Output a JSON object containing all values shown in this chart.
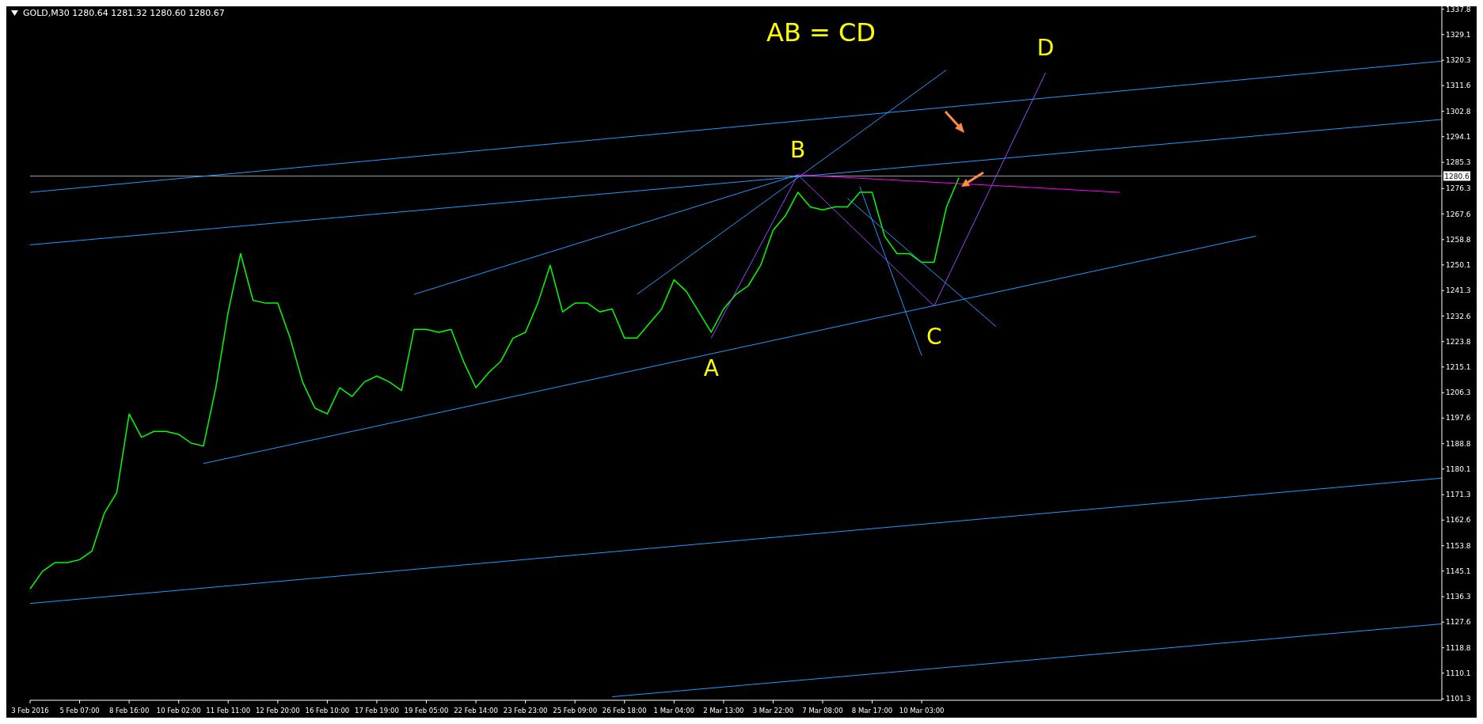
{
  "chart_data": {
    "type": "line",
    "title": "AB = CD",
    "subtitle": "GOLD,M30  1280.64 1281.32 1280.60 1280.67",
    "categories": [
      "3 Feb 2016",
      null,
      null,
      null,
      "5 Feb 07:00",
      null,
      null,
      null,
      "8 Feb 16:00",
      null,
      null,
      null,
      "10 Feb 02:00",
      null,
      null,
      null,
      "11 Feb 11:00",
      null,
      null,
      null,
      "12 Feb 20:00",
      null,
      null,
      null,
      "16 Feb 10:00",
      null,
      null,
      null,
      "17 Feb 19:00",
      null,
      null,
      null,
      "19 Feb 05:00",
      null,
      null,
      null,
      "22 Feb 14:00",
      null,
      null,
      null,
      "23 Feb 23:00",
      null,
      null,
      null,
      "25 Feb 09:00",
      null,
      null,
      null,
      "26 Feb 18:00",
      null,
      null,
      null,
      "1 Mar 04:00",
      null,
      null,
      null,
      "2 Mar 13:00",
      null,
      null,
      null,
      "3 Mar 22:00",
      null,
      null,
      null,
      "7 Mar 08:00",
      null,
      null,
      null,
      "8 Mar 17:00",
      null,
      null,
      null,
      "10 Mar 03:00",
      null,
      null,
      null,
      null,
      null,
      null,
      null,
      null,
      null,
      null,
      null,
      null,
      null,
      null,
      null,
      null,
      null,
      null,
      null,
      null,
      null,
      null,
      null,
      null,
      null,
      null,
      null,
      null,
      null,
      null,
      null,
      null,
      null,
      null,
      null,
      null,
      null,
      null,
      null,
      null,
      null,
      null
    ],
    "series": [
      {
        "color": "#00ff00",
        "values": [
          1139,
          1145,
          1148,
          1148,
          1149,
          1152,
          1165,
          1172,
          1199,
          1191,
          1193,
          1193,
          1192,
          1189,
          1188,
          1208,
          1234,
          1254,
          1238,
          1237,
          1237,
          1225,
          1210,
          1201,
          1199,
          1208,
          1205,
          1210,
          1212,
          1210,
          1207,
          1228,
          1228,
          1227,
          1228,
          1217,
          1208,
          1213,
          1217,
          1225,
          1227,
          1237,
          1250,
          1234,
          1237,
          1237,
          1234,
          1235,
          1225,
          1225,
          1230,
          1235,
          1245,
          1241,
          1234,
          1227,
          1235,
          1240,
          1243,
          1250,
          1262,
          1267,
          1275,
          1270,
          1269,
          1270,
          1270,
          1275,
          1275,
          1260,
          1254,
          1254,
          1251,
          1251,
          1270,
          1280,
          null,
          null,
          null,
          null,
          null,
          null,
          null,
          null,
          null,
          null,
          null,
          null,
          null,
          null,
          null,
          null,
          null,
          null,
          null,
          null,
          null,
          null,
          null,
          null,
          null,
          null,
          null,
          null,
          null,
          null,
          null,
          null,
          null,
          null,
          null,
          null,
          null,
          null,
          null
        ]
      },
      {
        "color": "#1e9bff",
        "values": [
          1275,
          null,
          null,
          null,
          null,
          null,
          null,
          null,
          null,
          null,
          null,
          null,
          null,
          null,
          null,
          null,
          null,
          null,
          null,
          null,
          null,
          null,
          null,
          null,
          null,
          null,
          null,
          null,
          null,
          null,
          null,
          null,
          null,
          null,
          null,
          null,
          null,
          null,
          null,
          null,
          null,
          null,
          null,
          null,
          null,
          null,
          null,
          null,
          null,
          null,
          null,
          null,
          null,
          null,
          null,
          null,
          null,
          null,
          null,
          null,
          null,
          null,
          null,
          null,
          null,
          null,
          null,
          null,
          null,
          null,
          null,
          null,
          null,
          null,
          null,
          null,
          null,
          null,
          null,
          null,
          null,
          null,
          null,
          null,
          null,
          null,
          null,
          null,
          null,
          null,
          null,
          null,
          null,
          null,
          null,
          null,
          null,
          null,
          null,
          null,
          null,
          null,
          null,
          null,
          null,
          null,
          null,
          null,
          null,
          null,
          null,
          null,
          null,
          null,
          1320
        ]
      },
      {
        "color": "#1e9bff",
        "values": [
          1257,
          null,
          null,
          null,
          null,
          null,
          null,
          null,
          null,
          null,
          null,
          null,
          null,
          null,
          null,
          null,
          null,
          null,
          null,
          null,
          null,
          null,
          null,
          null,
          null,
          null,
          null,
          null,
          null,
          null,
          null,
          null,
          null,
          null,
          null,
          null,
          null,
          null,
          null,
          null,
          null,
          null,
          null,
          null,
          null,
          null,
          null,
          null,
          null,
          null,
          null,
          null,
          null,
          null,
          null,
          null,
          null,
          null,
          null,
          null,
          null,
          null,
          null,
          null,
          null,
          null,
          null,
          null,
          null,
          null,
          null,
          null,
          null,
          null,
          null,
          null,
          null,
          null,
          null,
          null,
          null,
          null,
          null,
          null,
          null,
          null,
          null,
          null,
          null,
          null,
          null,
          null,
          null,
          null,
          null,
          null,
          null,
          null,
          null,
          null,
          null,
          null,
          null,
          null,
          null,
          null,
          null,
          null,
          null,
          null,
          null,
          null,
          null,
          null,
          1300
        ]
      },
      {
        "color": "#1e9bff",
        "values": [
          null,
          null,
          null,
          null,
          null,
          null,
          null,
          null,
          null,
          null,
          null,
          null,
          null,
          null,
          1182,
          null,
          null,
          null,
          null,
          null,
          null,
          null,
          null,
          null,
          null,
          null,
          null,
          null,
          null,
          null,
          null,
          null,
          null,
          null,
          null,
          null,
          null,
          null,
          null,
          null,
          null,
          null,
          null,
          null,
          null,
          null,
          null,
          null,
          null,
          null,
          null,
          null,
          null,
          null,
          null,
          null,
          null,
          null,
          null,
          null,
          null,
          null,
          null,
          null,
          null,
          null,
          null,
          null,
          null,
          null,
          null,
          null,
          null,
          null,
          null,
          null,
          null,
          null,
          null,
          null,
          null,
          null,
          null,
          null,
          null,
          null,
          null,
          null,
          null,
          null,
          null,
          null,
          null,
          null,
          null,
          null,
          null,
          null,
          null,
          1260,
          null,
          null,
          null,
          null,
          null,
          null,
          null,
          null,
          null,
          null,
          null,
          null,
          null,
          null,
          null
        ]
      },
      {
        "color": "#1e9bff",
        "values": [
          1134,
          null,
          null,
          null,
          null,
          null,
          null,
          null,
          null,
          null,
          null,
          null,
          null,
          null,
          null,
          null,
          null,
          null,
          null,
          null,
          null,
          null,
          null,
          null,
          null,
          null,
          null,
          null,
          null,
          null,
          null,
          null,
          null,
          null,
          null,
          null,
          null,
          null,
          null,
          null,
          null,
          null,
          null,
          null,
          null,
          null,
          null,
          null,
          null,
          null,
          null,
          null,
          null,
          null,
          null,
          null,
          null,
          null,
          null,
          null,
          null,
          null,
          null,
          null,
          null,
          null,
          null,
          null,
          null,
          null,
          null,
          null,
          null,
          null,
          null,
          null,
          null,
          null,
          null,
          null,
          null,
          null,
          null,
          null,
          null,
          null,
          null,
          null,
          null,
          null,
          null,
          null,
          null,
          null,
          null,
          null,
          null,
          null,
          null,
          null,
          null,
          null,
          null,
          null,
          null,
          null,
          null,
          null,
          null,
          null,
          null,
          null,
          null,
          null,
          1177
        ]
      },
      {
        "color": "#1e9bff",
        "values": [
          null,
          null,
          null,
          null,
          null,
          null,
          null,
          null,
          null,
          null,
          null,
          null,
          null,
          null,
          null,
          null,
          null,
          null,
          null,
          null,
          null,
          null,
          null,
          null,
          null,
          null,
          null,
          null,
          null,
          null,
          null,
          null,
          null,
          null,
          null,
          null,
          null,
          null,
          null,
          null,
          null,
          null,
          null,
          null,
          null,
          null,
          null,
          1102,
          null,
          null,
          null,
          null,
          null,
          null,
          null,
          null,
          null,
          null,
          null,
          null,
          null,
          null,
          null,
          null,
          null,
          null,
          null,
          null,
          null,
          null,
          null,
          null,
          null,
          null,
          null,
          null,
          null,
          null,
          null,
          null,
          null,
          null,
          null,
          null,
          null,
          null,
          null,
          null,
          null,
          null,
          null,
          null,
          null,
          null,
          null,
          null,
          null,
          null,
          null,
          null,
          null,
          null,
          null,
          null,
          null,
          null,
          null,
          null,
          null,
          null,
          null,
          null,
          null,
          null,
          1127
        ]
      },
      {
        "color": "#1e9bff",
        "values": [
          null,
          null,
          null,
          null,
          null,
          null,
          null,
          null,
          null,
          null,
          null,
          null,
          null,
          null,
          null,
          null,
          null,
          null,
          null,
          null,
          null,
          null,
          null,
          null,
          null,
          null,
          null,
          null,
          null,
          null,
          null,
          1240,
          null,
          null,
          null,
          null,
          null,
          null,
          null,
          null,
          null,
          null,
          null,
          null,
          null,
          null,
          null,
          null,
          null,
          null,
          null,
          null,
          null,
          null,
          null,
          null,
          null,
          null,
          null,
          null,
          null,
          null,
          1281,
          null,
          null,
          null,
          null,
          null,
          null,
          null,
          null,
          null,
          null,
          null,
          null,
          null,
          null,
          null,
          null,
          null,
          null,
          null,
          null,
          null,
          null,
          null,
          null,
          null,
          null,
          null,
          null,
          null,
          null,
          null,
          null,
          null,
          null,
          null,
          null,
          null,
          null,
          null,
          null,
          null,
          null,
          null,
          null,
          null,
          null,
          null,
          null,
          null,
          null,
          null,
          null
        ]
      },
      {
        "color": "#1e9bff",
        "values": [
          null,
          null,
          null,
          null,
          null,
          null,
          null,
          null,
          null,
          null,
          null,
          null,
          null,
          null,
          null,
          null,
          null,
          null,
          null,
          null,
          null,
          null,
          null,
          null,
          null,
          null,
          null,
          null,
          null,
          null,
          null,
          null,
          null,
          null,
          null,
          null,
          null,
          null,
          null,
          null,
          null,
          null,
          null,
          null,
          null,
          null,
          null,
          null,
          null,
          1240,
          null,
          null,
          null,
          null,
          null,
          null,
          null,
          null,
          null,
          null,
          null,
          null,
          null,
          null,
          null,
          null,
          null,
          null,
          null,
          null,
          null,
          null,
          null,
          null,
          1317,
          null,
          null,
          null,
          null,
          null,
          null,
          null,
          null,
          null,
          null,
          null,
          null,
          null,
          null,
          null,
          null,
          null,
          null,
          null,
          null,
          null,
          null,
          null,
          null,
          null,
          null,
          null,
          null,
          null,
          null,
          null,
          null,
          null,
          null,
          null,
          null,
          null,
          null,
          null,
          null
        ]
      },
      {
        "color": "#ff00ff",
        "values": [
          null,
          null,
          null,
          null,
          null,
          null,
          null,
          null,
          null,
          null,
          null,
          null,
          null,
          null,
          null,
          null,
          null,
          null,
          null,
          null,
          null,
          null,
          null,
          null,
          null,
          null,
          null,
          null,
          null,
          null,
          null,
          null,
          null,
          null,
          null,
          null,
          null,
          null,
          null,
          null,
          null,
          null,
          null,
          null,
          null,
          null,
          null,
          null,
          null,
          null,
          null,
          null,
          null,
          null,
          null,
          null,
          null,
          null,
          null,
          null,
          null,
          null,
          1281,
          null,
          null,
          null,
          null,
          null,
          null,
          null,
          null,
          null,
          null,
          null,
          null,
          null,
          null,
          null,
          null,
          null,
          null,
          null,
          null,
          null,
          null,
          null,
          null,
          null,
          1275,
          null,
          null,
          null,
          null,
          null,
          null,
          null,
          null,
          null,
          null,
          null,
          null,
          null,
          null,
          null,
          null,
          null,
          null,
          null,
          null,
          null,
          null,
          null,
          null,
          null,
          null
        ]
      },
      {
        "color": "#1e9bff",
        "values": [
          null,
          null,
          null,
          null,
          null,
          null,
          null,
          null,
          null,
          null,
          null,
          null,
          null,
          null,
          null,
          null,
          null,
          null,
          null,
          null,
          null,
          null,
          null,
          null,
          null,
          null,
          null,
          null,
          null,
          null,
          null,
          null,
          null,
          null,
          null,
          null,
          null,
          null,
          null,
          null,
          null,
          null,
          null,
          null,
          null,
          null,
          null,
          null,
          null,
          null,
          null,
          null,
          null,
          null,
          null,
          null,
          null,
          null,
          null,
          null,
          null,
          null,
          null,
          null,
          null,
          null,
          null,
          1277,
          null,
          null,
          null,
          null,
          1219,
          null,
          null,
          null,
          null,
          null,
          null,
          null,
          null,
          null,
          null,
          null,
          null,
          null,
          null,
          null,
          null,
          null,
          null,
          null,
          null,
          null,
          null,
          null,
          null,
          null,
          null,
          null,
          null,
          null,
          null,
          null,
          null,
          null,
          null,
          null,
          null,
          null,
          null,
          null,
          null,
          null,
          null
        ]
      },
      {
        "color": "#1e9bff",
        "values": [
          null,
          null,
          null,
          null,
          null,
          null,
          null,
          null,
          null,
          null,
          null,
          null,
          null,
          null,
          null,
          null,
          null,
          null,
          null,
          null,
          null,
          null,
          null,
          null,
          null,
          null,
          null,
          null,
          null,
          null,
          null,
          null,
          null,
          null,
          null,
          null,
          null,
          null,
          null,
          null,
          null,
          null,
          null,
          null,
          null,
          null,
          null,
          null,
          null,
          null,
          null,
          null,
          null,
          null,
          null,
          null,
          null,
          null,
          null,
          null,
          null,
          null,
          null,
          null,
          null,
          null,
          1273,
          null,
          null,
          null,
          null,
          null,
          null,
          null,
          null,
          null,
          null,
          null,
          1229,
          null,
          null,
          null,
          null,
          null,
          null,
          null,
          null,
          null,
          null,
          null,
          null,
          null,
          null,
          null,
          null,
          null,
          null,
          null,
          null,
          null,
          null,
          null,
          null,
          null,
          null,
          null,
          null,
          null,
          null,
          null,
          null,
          null,
          null,
          null,
          null
        ]
      },
      {
        "color": "#a040ff",
        "values": [
          null,
          null,
          null,
          null,
          null,
          null,
          null,
          null,
          null,
          null,
          null,
          null,
          null,
          null,
          null,
          null,
          null,
          null,
          null,
          null,
          null,
          null,
          null,
          null,
          null,
          null,
          null,
          null,
          null,
          null,
          null,
          null,
          null,
          null,
          null,
          null,
          null,
          null,
          null,
          null,
          null,
          null,
          null,
          null,
          null,
          null,
          null,
          null,
          null,
          null,
          null,
          null,
          null,
          null,
          null,
          1225,
          null,
          null,
          null,
          null,
          null,
          null,
          1281,
          null,
          null,
          null,
          null,
          null,
          null,
          null,
          null,
          null,
          null,
          1236,
          null,
          null,
          null,
          null,
          null,
          null,
          null,
          null,
          1316,
          null,
          null,
          null,
          null,
          null,
          null,
          null,
          null,
          null,
          null,
          null,
          null,
          null,
          null,
          null,
          null,
          null,
          null,
          null,
          null,
          null,
          null,
          null,
          null,
          null,
          null,
          null,
          null,
          null,
          null,
          null,
          null
        ],
        "value_labels": [
          null,
          null,
          null,
          null,
          null,
          null,
          null,
          null,
          null,
          null,
          null,
          null,
          null,
          null,
          null,
          null,
          null,
          null,
          null,
          null,
          null,
          null,
          null,
          null,
          null,
          null,
          null,
          null,
          null,
          null,
          null,
          null,
          null,
          null,
          null,
          null,
          null,
          null,
          null,
          null,
          null,
          null,
          null,
          null,
          null,
          null,
          null,
          null,
          null,
          null,
          null,
          null,
          null,
          null,
          null,
          "A",
          null,
          null,
          null,
          null,
          null,
          null,
          "B",
          null,
          null,
          null,
          null,
          null,
          null,
          null,
          null,
          null,
          null,
          "C",
          null,
          null,
          null,
          null,
          null,
          null,
          null,
          null,
          "D",
          null,
          null,
          null,
          null,
          null,
          null,
          null,
          null,
          null,
          null,
          null,
          null,
          null,
          null,
          null,
          null,
          null,
          null,
          null,
          null,
          null,
          null,
          null,
          null,
          null,
          null,
          null,
          null,
          null,
          null,
          null,
          null
        ]
      }
    ],
    "ylim": [
      1100.8,
      1338.8
    ],
    "yticks": [
      1101.3,
      1110.1,
      1118.8,
      1127.6,
      1136.3,
      1145.1,
      1153.8,
      1162.6,
      1171.3,
      1180.1,
      1188.8,
      1197.6,
      1206.3,
      1215.1,
      1223.8,
      1232.6,
      1241.3,
      1250.1,
      1258.8,
      1267.6,
      1276.3,
      1285.3,
      1294.1,
      1302.8,
      1311.6,
      1320.3,
      1329.1,
      1337.8
    ],
    "ref_lines": [
      {
        "axis": "y",
        "value": 1280.6,
        "label": "1280.6",
        "color": "#a0a0a0"
      }
    ],
    "grid": false,
    "legend": false,
    "marker": "none",
    "line_style": "solid"
  }
}
